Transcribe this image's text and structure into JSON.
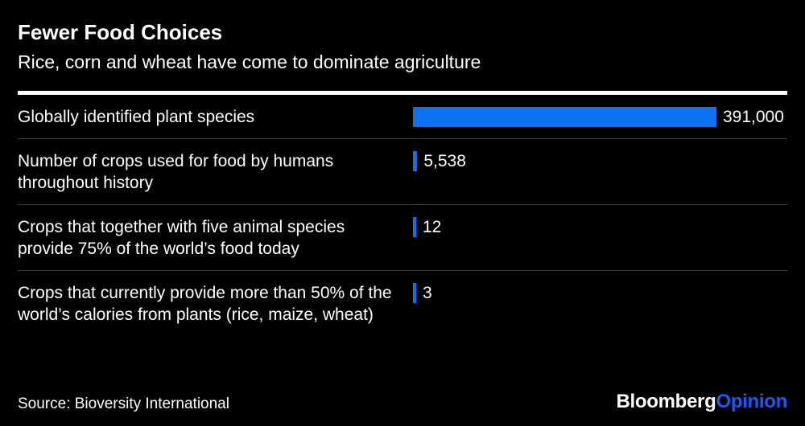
{
  "header": {
    "title": "Fewer Food Choices",
    "subtitle": "Rice, corn and wheat have come to dominate agriculture"
  },
  "chart_data": {
    "type": "bar",
    "orientation": "horizontal",
    "title": "Fewer Food Choices",
    "subtitle": "Rice, corn and wheat have come to dominate agriculture",
    "categories": [
      "Globally identified plant species",
      "Number of crops used for food by humans throughout history",
      "Crops that together with five animal species provide 75% of the world’s food today",
      "Crops that currently provide more than 50% of the world’s calories from plants (rice, maize, wheat)"
    ],
    "values": [
      391000,
      5538,
      12,
      3
    ],
    "value_labels": [
      "391,000",
      "5,538",
      "12",
      "3"
    ],
    "max_value": 391000,
    "bar_color": "#0d72f2",
    "xlim": [
      0,
      391000
    ],
    "grid": false,
    "legend": false
  },
  "footer": {
    "source": "Source: Bioversity International",
    "brand_name": "Bloomberg",
    "brand_suffix": "Opinion"
  },
  "colors": {
    "background": "#000000",
    "text": "#ffffff",
    "bar": "#0d72f2",
    "brand_accent": "#2158f0",
    "divider": "#3c3c3c"
  }
}
